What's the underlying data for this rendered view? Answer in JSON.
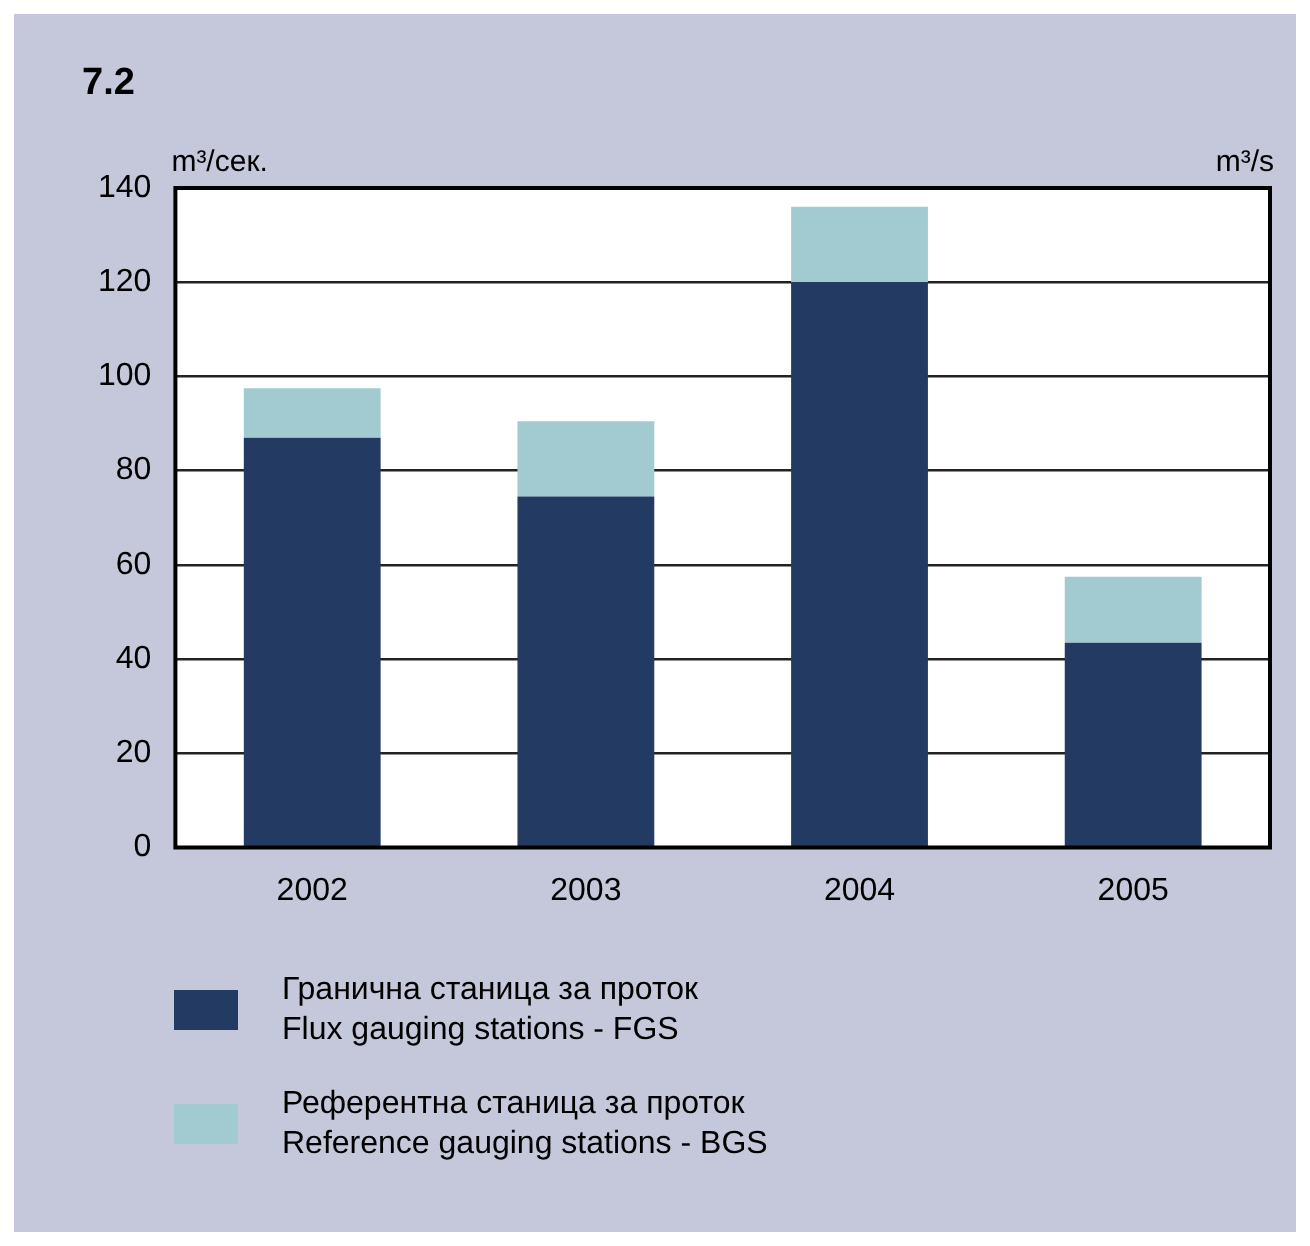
{
  "chart_data": {
    "type": "bar",
    "title": "7.2",
    "ylabel": "m³/сек.",
    "y2label": "m³/s",
    "categories": [
      "2002",
      "2003",
      "2004",
      "2005"
    ],
    "stacked": true,
    "series": [
      {
        "name": "Гранична станица за проток\nFlux gauging stations - FGS",
        "color": "#233b62",
        "values": [
          87,
          74.5,
          120,
          43.5
        ]
      },
      {
        "name": "Референтна станица за проток\nReference gauging stations - BGS",
        "color": "#a1cbd0",
        "values": [
          10.5,
          16,
          16,
          14
        ]
      }
    ],
    "ylim": [
      0,
      140
    ],
    "yticks": [
      0,
      20,
      40,
      60,
      80,
      100,
      120,
      140
    ],
    "grid": "y",
    "legend": "bottom"
  }
}
